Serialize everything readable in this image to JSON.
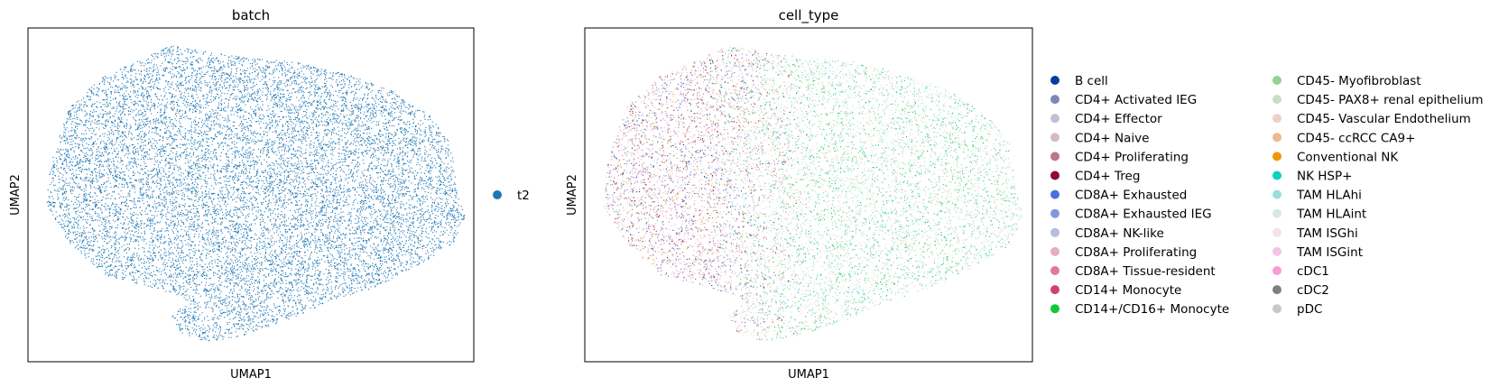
{
  "chart_data": [
    {
      "type": "scatter",
      "title": "batch",
      "xlabel": "UMAP1",
      "ylabel": "UMAP2",
      "grid": false,
      "ticks": false,
      "legend_position": "right",
      "series": [
        {
          "name": "t2",
          "color": "#1f77b4"
        }
      ]
    },
    {
      "type": "scatter",
      "title": "cell_type",
      "xlabel": "UMAP1",
      "ylabel": "UMAP2",
      "grid": false,
      "ticks": false,
      "legend_position": "right",
      "legend_columns": 2,
      "series": [
        {
          "name": "B cell",
          "color": "#023fa5"
        },
        {
          "name": "CD4+ Activated IEG",
          "color": "#7d87b9"
        },
        {
          "name": "CD4+ Effector",
          "color": "#bec1d4"
        },
        {
          "name": "CD4+ Naive",
          "color": "#d6bcc0"
        },
        {
          "name": "CD4+ Proliferating",
          "color": "#bb7784"
        },
        {
          "name": "CD4+ Treg",
          "color": "#8e063b"
        },
        {
          "name": "CD8A+ Exhausted",
          "color": "#4a6fe3"
        },
        {
          "name": "CD8A+ Exhausted IEG",
          "color": "#8595e1"
        },
        {
          "name": "CD8A+ NK-like",
          "color": "#b5bbe3"
        },
        {
          "name": "CD8A+ Proliferating",
          "color": "#e6afb9"
        },
        {
          "name": "CD8A+ Tissue-resident",
          "color": "#e07b91"
        },
        {
          "name": "CD14+ Monocyte",
          "color": "#d33f6a"
        },
        {
          "name": "CD14+/CD16+ Monocyte",
          "color": "#11c638"
        },
        {
          "name": "CD45- Myofibroblast",
          "color": "#8dd593"
        },
        {
          "name": "CD45- PAX8+ renal epithelium",
          "color": "#c6dec7"
        },
        {
          "name": "CD45- Vascular Endothelium",
          "color": "#ead3c6"
        },
        {
          "name": "CD45- ccRCC CA9+",
          "color": "#f0b98d"
        },
        {
          "name": "Conventional NK",
          "color": "#ef9708"
        },
        {
          "name": "NK HSP+",
          "color": "#0fcfc0"
        },
        {
          "name": "TAM HLAhi",
          "color": "#9cded6"
        },
        {
          "name": "TAM HLAint",
          "color": "#d5eae7"
        },
        {
          "name": "TAM ISGhi",
          "color": "#f3e1eb"
        },
        {
          "name": "TAM ISGint",
          "color": "#f6c4e1"
        },
        {
          "name": "cDC1",
          "color": "#f79cd4"
        },
        {
          "name": "cDC2",
          "color": "#7f7f7f"
        },
        {
          "name": "pDC",
          "color": "#c7c7c7"
        }
      ]
    }
  ]
}
